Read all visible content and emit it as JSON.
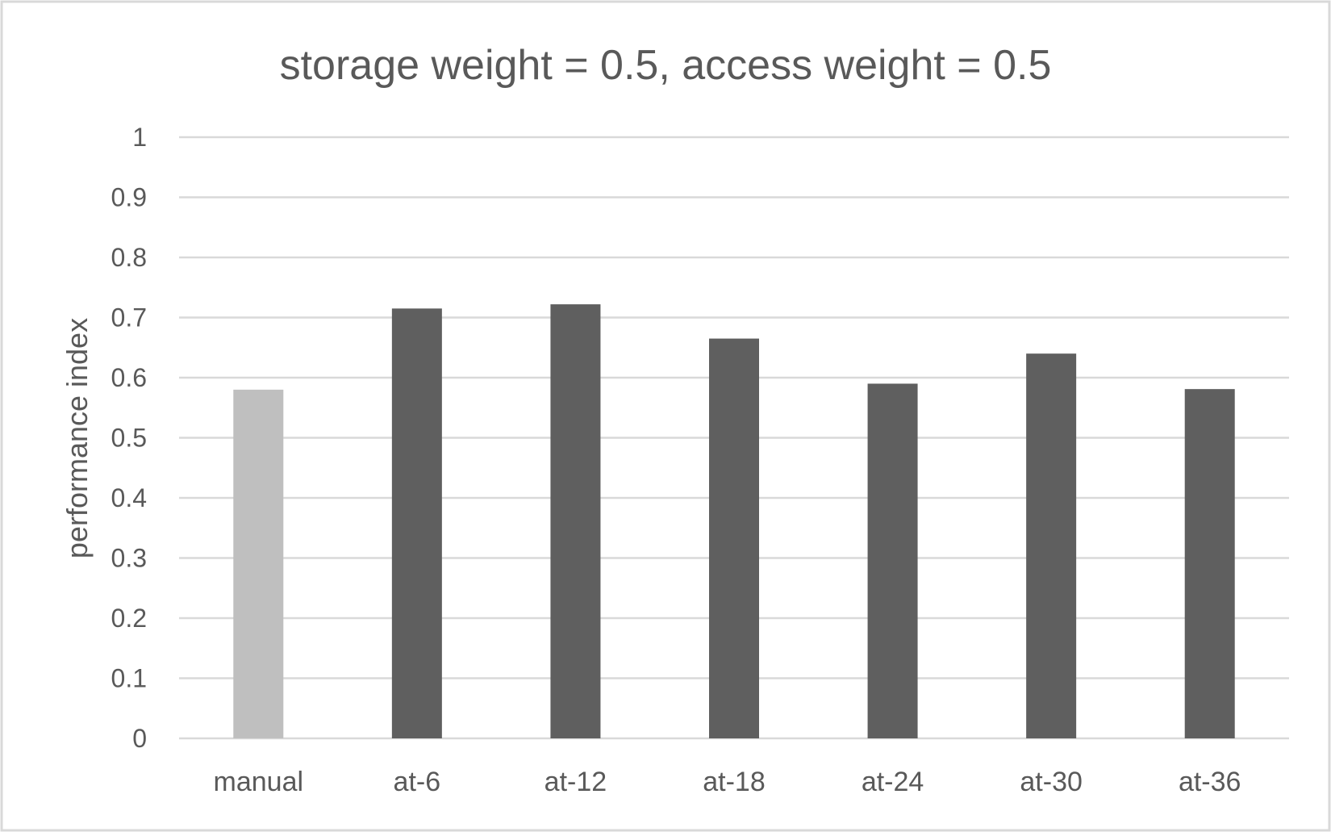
{
  "chart_data": {
    "type": "bar",
    "title": "storage weight = 0.5, access weight = 0.5",
    "xlabel": "",
    "ylabel": "performance index",
    "ylim": [
      0,
      1
    ],
    "yticks": [
      "0",
      "0.1",
      "0.2",
      "0.3",
      "0.4",
      "0.5",
      "0.6",
      "0.7",
      "0.8",
      "0.9",
      "1"
    ],
    "grid": true,
    "legend": "none",
    "categories": [
      "manual",
      "at-6",
      "at-12",
      "at-18",
      "at-24",
      "at-30",
      "at-36"
    ],
    "values": [
      0.58,
      0.715,
      0.722,
      0.665,
      0.59,
      0.64,
      0.581
    ],
    "bar_colors": [
      "#bfbfbf",
      "#5f5f5f",
      "#5f5f5f",
      "#5f5f5f",
      "#5f5f5f",
      "#5f5f5f",
      "#5f5f5f"
    ]
  },
  "colors": {
    "gridline": "#d9d9d9",
    "text": "#595959",
    "frame_border": "#d9d9d9",
    "highlight_bar": "#bfbfbf",
    "default_bar": "#5f5f5f"
  }
}
